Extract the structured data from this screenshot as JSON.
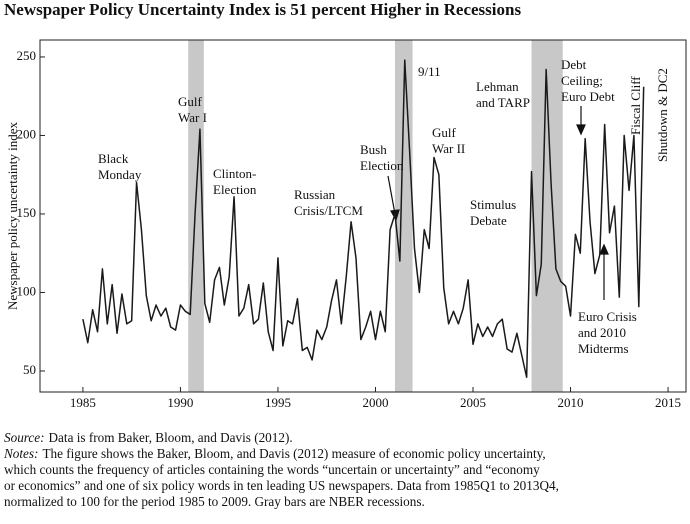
{
  "chart_data": {
    "type": "line",
    "title": "Newspaper Policy Uncertainty Index is 51 percent Higher in Recessions",
    "y_label": "Newspaper policy uncertainty index",
    "xlim": [
      1982.8,
      2015.92
    ],
    "ylim": [
      36.6,
      260.8
    ],
    "xticks": [
      1985,
      1990,
      1995,
      2000,
      2005,
      2010,
      2015
    ],
    "yticks": [
      50,
      100,
      150,
      200,
      250
    ],
    "color": "#1a1a1a",
    "recession_color": "#c8c8c8",
    "recessions": [
      [
        1990.4,
        1991.2
      ],
      [
        2001.0,
        2001.9
      ],
      [
        2008.0,
        2009.6
      ]
    ],
    "x": [
      1985,
      1985.25,
      1985.5,
      1985.75,
      1986,
      1986.25,
      1986.5,
      1986.75,
      1987,
      1987.25,
      1987.5,
      1987.75,
      1988,
      1988.25,
      1988.5,
      1988.75,
      1989,
      1989.25,
      1989.5,
      1989.75,
      1990,
      1990.25,
      1990.5,
      1990.75,
      1991,
      1991.25,
      1991.5,
      1991.75,
      1992,
      1992.25,
      1992.5,
      1992.75,
      1993,
      1993.25,
      1993.5,
      1993.75,
      1994,
      1994.25,
      1994.5,
      1994.75,
      1995,
      1995.25,
      1995.5,
      1995.75,
      1996,
      1996.25,
      1996.5,
      1996.75,
      1997,
      1997.25,
      1997.5,
      1997.75,
      1998,
      1998.25,
      1998.5,
      1998.75,
      1999,
      1999.25,
      1999.5,
      1999.75,
      2000,
      2000.25,
      2000.5,
      2000.75,
      2001,
      2001.25,
      2001.5,
      2001.75,
      2002,
      2002.25,
      2002.5,
      2002.75,
      2003,
      2003.25,
      2003.5,
      2003.75,
      2004,
      2004.25,
      2004.5,
      2004.75,
      2005,
      2005.25,
      2005.5,
      2005.75,
      2006,
      2006.25,
      2006.5,
      2006.75,
      2007,
      2007.25,
      2007.5,
      2007.75,
      2008,
      2008.25,
      2008.5,
      2008.75,
      2009,
      2009.25,
      2009.5,
      2009.75,
      2010,
      2010.25,
      2010.5,
      2010.75,
      2011,
      2011.25,
      2011.5,
      2011.75,
      2012,
      2012.25,
      2012.5,
      2012.75,
      2013,
      2013.25,
      2013.5,
      2013.75
    ],
    "values": [
      83,
      68,
      89,
      75,
      115,
      80,
      105,
      74,
      99,
      80,
      82,
      170,
      140,
      98,
      82,
      92,
      85,
      90,
      78,
      76,
      92,
      88,
      86,
      150,
      204,
      93,
      81,
      108,
      116,
      92,
      110,
      161,
      85,
      90,
      105,
      80,
      83,
      106,
      75,
      63,
      122,
      66,
      82,
      80,
      96,
      63,
      65,
      57,
      76,
      70,
      78,
      95,
      108,
      80,
      110,
      145,
      122,
      70,
      78,
      88,
      70,
      88,
      75,
      140,
      150,
      120,
      248,
      190,
      128,
      100,
      140,
      128,
      186,
      175,
      103,
      80,
      88,
      80,
      90,
      108,
      67,
      80,
      72,
      78,
      72,
      80,
      83,
      64,
      62,
      74,
      60,
      46,
      177,
      98,
      118,
      242,
      170,
      115,
      107,
      104,
      85,
      137,
      125,
      198,
      145,
      112,
      124,
      207,
      138,
      155,
      97,
      200,
      165,
      200,
      91,
      231
    ],
    "annotations": [
      {
        "lines": [
          "Black",
          "Monday"
        ]
      },
      {
        "lines": [
          "Gulf",
          "War I"
        ]
      },
      {
        "lines": [
          "Clinton-",
          "Election"
        ]
      },
      {
        "lines": [
          "Russian",
          "Crisis/LTCM"
        ]
      },
      {
        "lines": [
          "Bush",
          "Election"
        ]
      },
      {
        "lines": [
          "9/11"
        ]
      },
      {
        "lines": [
          "Gulf",
          "War II"
        ]
      },
      {
        "lines": [
          "Lehman",
          "and TARP"
        ]
      },
      {
        "lines": [
          "Stimulus",
          "Debate"
        ]
      },
      {
        "lines": [
          "Debt",
          "Ceiling;",
          "Euro Debt"
        ]
      },
      {
        "lines": [
          "Fiscal Cliff"
        ]
      },
      {
        "lines": [
          "Shutdown & DC2"
        ]
      },
      {
        "lines": [
          "Euro Crisis",
          "and 2010",
          "Midterms"
        ]
      }
    ],
    "source": {
      "label": "Source:",
      "text": "Data is from Baker, Bloom, and Davis (2012)."
    },
    "notes": {
      "label": "Notes:",
      "lines": [
        "The figure shows the Baker, Bloom, and Davis (2012) measure of economic policy uncertainty,",
        "which counts the frequency of articles containing the words “uncertain or uncertainty” and “economy",
        "or economics” and one of six policy words in ten leading US newspapers. Data from 1985Q1 to 2013Q4,",
        "normalized to 100 for the period 1985 to 2009. Gray bars are NBER recessions."
      ]
    }
  }
}
